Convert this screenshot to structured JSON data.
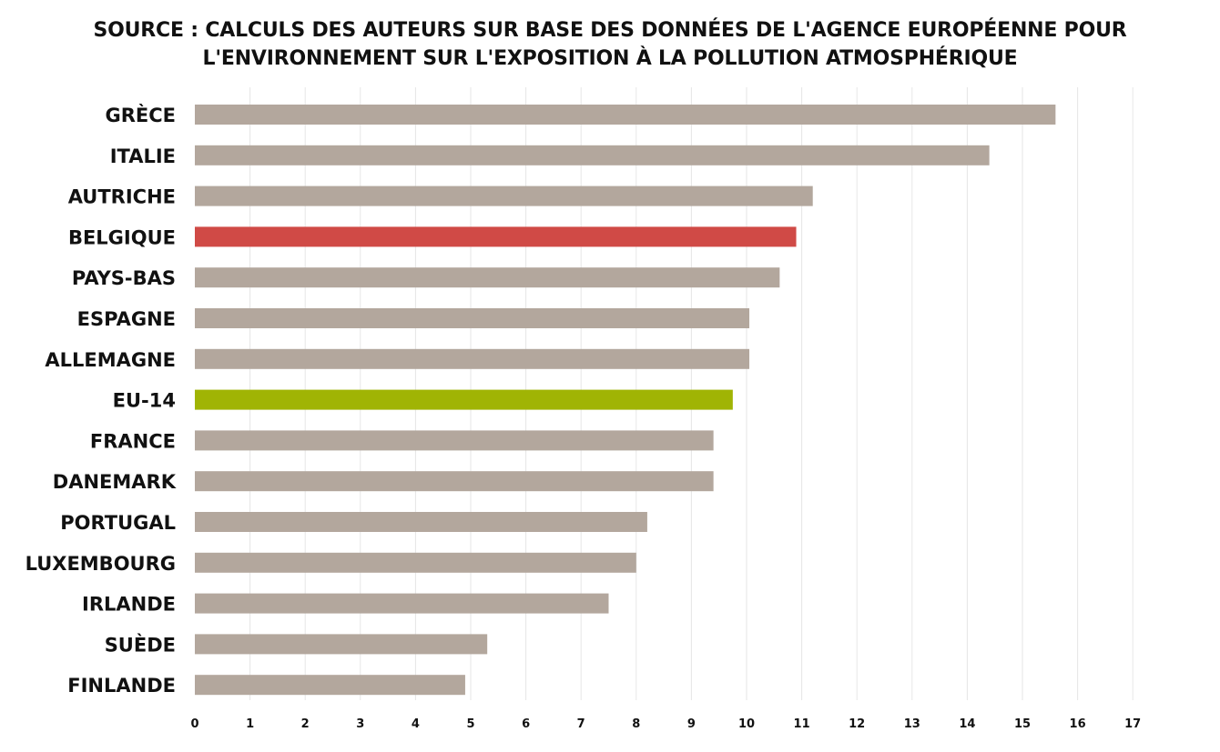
{
  "title_lines": [
    "SOURCE : CALCULS DES AUTEURS SUR BASE DES DONNÉES DE L'AGENCE EUROPÉENNE POUR",
    "L'ENVIRONNEMENT SUR L'EXPOSITION À LA POLLUTION ATMOSPHÉRIQUE"
  ],
  "chart_data": {
    "type": "bar",
    "orientation": "horizontal",
    "title": "SOURCE : CALCULS DES AUTEURS SUR BASE DES DONNÉES DE L'AGENCE EUROPÉENNE POUR L'ENVIRONNEMENT SUR L'EXPOSITION À LA POLLUTION ATMOSPHÉRIQUE",
    "xlabel": "",
    "ylabel": "",
    "categories": [
      "GRÈCE",
      "ITALIE",
      "AUTRICHE",
      "BELGIQUE",
      "PAYS-BAS",
      "ESPAGNE",
      "ALLEMAGNE",
      "EU-14",
      "FRANCE",
      "DANEMARK",
      "PORTUGAL",
      "LUXEMBOURG",
      "IRLANDE",
      "SUÈDE",
      "FINLANDE"
    ],
    "values": [
      15.6,
      14.4,
      11.2,
      10.9,
      10.6,
      10.05,
      10.05,
      9.75,
      9.4,
      9.4,
      8.2,
      8.0,
      7.5,
      5.3,
      4.9
    ],
    "colors": [
      "#b3a79d",
      "#b3a79d",
      "#b3a79d",
      "#d04a46",
      "#b3a79d",
      "#b3a79d",
      "#b3a79d",
      "#a0b404",
      "#b3a79d",
      "#b3a79d",
      "#b3a79d",
      "#b3a79d",
      "#b3a79d",
      "#b3a79d",
      "#b3a79d"
    ],
    "xlim": [
      0,
      17
    ],
    "xticks": [
      0,
      1,
      2,
      3,
      4,
      5,
      6,
      7,
      8,
      9,
      10,
      11,
      12,
      13,
      14,
      15,
      16,
      17
    ],
    "grid": true,
    "legend": "none"
  }
}
